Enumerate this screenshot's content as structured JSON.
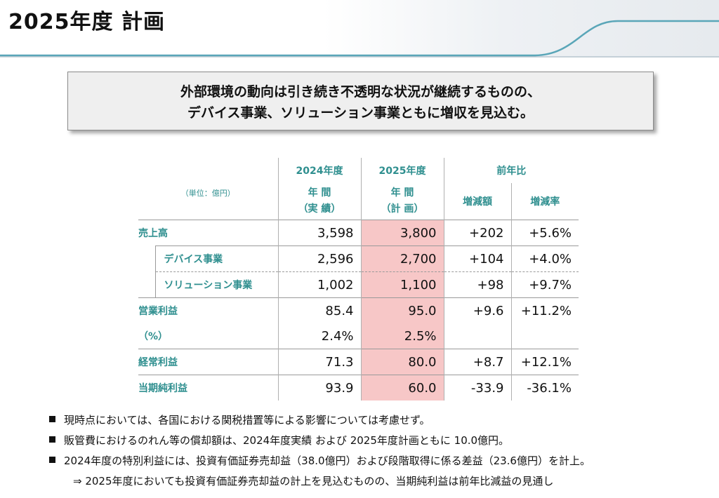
{
  "page": {
    "title": "2025年度 計画"
  },
  "summary": {
    "line1": "外部環境の動向は引き続き不透明な状況が継続するものの、",
    "line2": "デバイス事業、ソリューション事業ともに増収を見込む。"
  },
  "table": {
    "unit": "（単位：億円）",
    "headers": {
      "col2024_top": "2024年度",
      "col2024_mid": "年 間",
      "col2024_bot": "（実 績）",
      "col2025_top": "2025年度",
      "col2025_mid": "年 間",
      "col2025_bot": "（計 画）",
      "yoy": "前年比",
      "diff": "増減額",
      "rate": "増減率"
    },
    "rows": [
      {
        "label": "売上高",
        "v2024": "3,598",
        "v2025": "3,800",
        "diff": "+202",
        "rate": "+5.6%"
      },
      {
        "label": "デバイス事業",
        "v2024": "2,596",
        "v2025": "2,700",
        "diff": "+104",
        "rate": "+4.0%"
      },
      {
        "label": "ソリューション事業",
        "v2024": "1,002",
        "v2025": "1,100",
        "diff": "+98",
        "rate": "+9.7%"
      },
      {
        "label": "営業利益",
        "v2024": "85.4",
        "v2025": "95.0",
        "diff": "+9.6",
        "rate": "+11.2%"
      },
      {
        "label": "（%）",
        "v2024": "2.4%",
        "v2025": "2.5%",
        "diff": "",
        "rate": ""
      },
      {
        "label": "経常利益",
        "v2024": "71.3",
        "v2025": "80.0",
        "diff": "+8.7",
        "rate": "+12.1%"
      },
      {
        "label": "当期純利益",
        "v2024": "93.9",
        "v2025": "60.0",
        "diff": "-33.9",
        "rate": "-36.1%"
      }
    ]
  },
  "notes": [
    "現時点においては、各国における関税措置等による影響については考慮せず。",
    "販管費におけるのれん等の償却額は、2024年度実績 および 2025年度計画ともに 10.0億円。",
    "2024年度の特別利益には、投資有価証券売却益（38.0億円）および段階取得に係る差益（23.6億円）を計上。"
  ],
  "sub_note": "⇒ 2025年度においても投資有価証券売却益の計上を見込むものの、当期純利益は前年比減益の見通し",
  "colors": {
    "accent_teal": "#2f8f8f",
    "plan_highlight": "#f7c7c7",
    "header_line": "#5aa6b8"
  }
}
